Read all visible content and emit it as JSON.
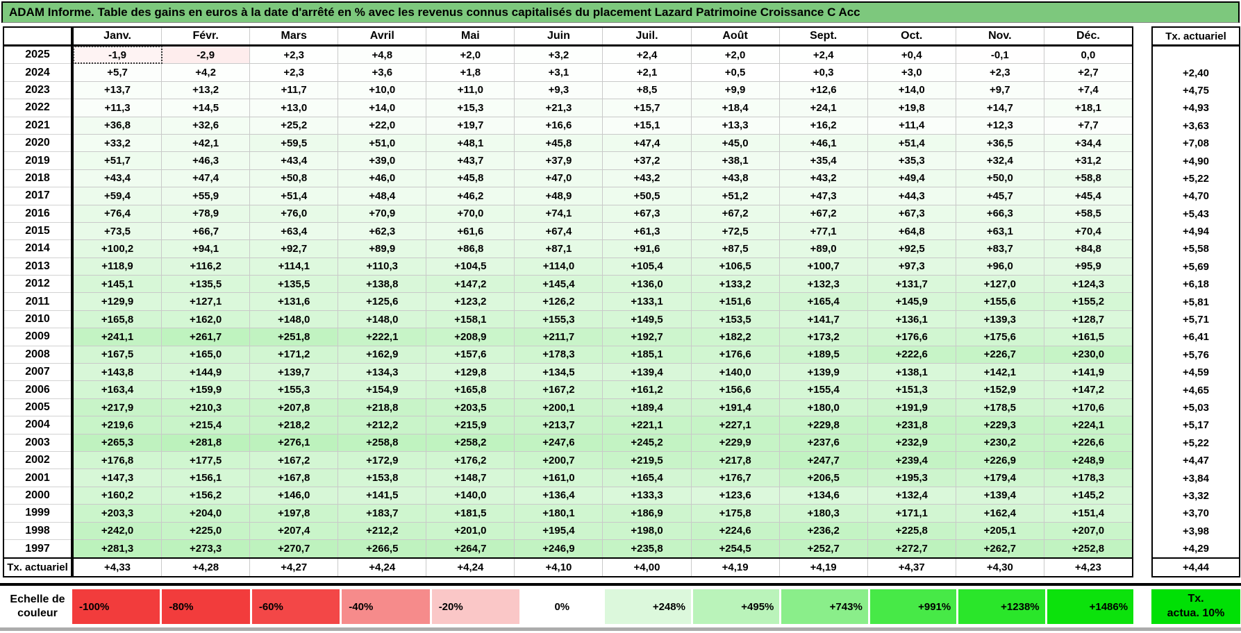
{
  "colors": {
    "title_bar_bg": "#7DC87D",
    "grid_line": "#C9C9C9",
    "border": "#000000"
  },
  "selection": {
    "row_index": 0,
    "col_index": 0,
    "year": "2025",
    "month": "Janv."
  },
  "chart_data": {
    "type": "heatmap",
    "title": "ADAM Informe. Table des gains en euros à la date d'arrêté en % avec les revenus connus capitalisés du placement Lazard Patrimoine Croissance C Acc",
    "columns": [
      "Janv.",
      "Févr.",
      "Mars",
      "Avril",
      "Mai",
      "Juin",
      "Juil.",
      "Août",
      "Sept.",
      "Oct.",
      "Nov.",
      "Déc."
    ],
    "right_column_header": "Tx. actuariel",
    "rows": [
      {
        "year": "2025",
        "values": [
          "-1,9",
          "-2,9",
          "+2,3",
          "+4,8",
          "+2,0",
          "+3,2",
          "+2,4",
          "+2,0",
          "+2,4",
          "+0,4",
          "-0,1",
          "0,0"
        ],
        "tx_actuariel": ""
      },
      {
        "year": "2024",
        "values": [
          "+5,7",
          "+4,2",
          "+2,3",
          "+3,6",
          "+1,8",
          "+3,1",
          "+2,1",
          "+0,5",
          "+0,3",
          "+3,0",
          "+2,3",
          "+2,7"
        ],
        "tx_actuariel": "+2,40"
      },
      {
        "year": "2023",
        "values": [
          "+13,7",
          "+13,2",
          "+11,7",
          "+10,0",
          "+11,0",
          "+9,3",
          "+8,5",
          "+9,9",
          "+12,6",
          "+14,0",
          "+9,7",
          "+7,4"
        ],
        "tx_actuariel": "+4,75"
      },
      {
        "year": "2022",
        "values": [
          "+11,3",
          "+14,5",
          "+13,0",
          "+14,0",
          "+15,3",
          "+21,3",
          "+15,7",
          "+18,4",
          "+24,1",
          "+19,8",
          "+14,7",
          "+18,1"
        ],
        "tx_actuariel": "+4,93"
      },
      {
        "year": "2021",
        "values": [
          "+36,8",
          "+32,6",
          "+25,2",
          "+22,0",
          "+19,7",
          "+16,6",
          "+15,1",
          "+13,3",
          "+16,2",
          "+11,4",
          "+12,3",
          "+7,7"
        ],
        "tx_actuariel": "+3,63"
      },
      {
        "year": "2020",
        "values": [
          "+33,2",
          "+42,1",
          "+59,5",
          "+51,0",
          "+48,1",
          "+45,8",
          "+47,4",
          "+45,0",
          "+46,1",
          "+51,4",
          "+36,5",
          "+34,4"
        ],
        "tx_actuariel": "+7,08"
      },
      {
        "year": "2019",
        "values": [
          "+51,7",
          "+46,3",
          "+43,4",
          "+39,0",
          "+43,7",
          "+37,9",
          "+37,2",
          "+38,1",
          "+35,4",
          "+35,3",
          "+32,4",
          "+31,2"
        ],
        "tx_actuariel": "+4,90"
      },
      {
        "year": "2018",
        "values": [
          "+43,4",
          "+47,4",
          "+50,8",
          "+46,0",
          "+45,8",
          "+47,0",
          "+43,2",
          "+43,8",
          "+43,2",
          "+49,4",
          "+50,0",
          "+58,8"
        ],
        "tx_actuariel": "+5,22"
      },
      {
        "year": "2017",
        "values": [
          "+59,4",
          "+55,9",
          "+51,4",
          "+48,4",
          "+46,2",
          "+48,9",
          "+50,5",
          "+51,2",
          "+47,3",
          "+44,3",
          "+45,7",
          "+45,4"
        ],
        "tx_actuariel": "+4,70"
      },
      {
        "year": "2016",
        "values": [
          "+76,4",
          "+78,9",
          "+76,0",
          "+70,9",
          "+70,0",
          "+74,1",
          "+67,3",
          "+67,2",
          "+67,2",
          "+67,3",
          "+66,3",
          "+58,5"
        ],
        "tx_actuariel": "+5,43"
      },
      {
        "year": "2015",
        "values": [
          "+73,5",
          "+66,7",
          "+63,4",
          "+62,3",
          "+61,6",
          "+67,4",
          "+61,3",
          "+72,5",
          "+77,1",
          "+64,8",
          "+63,1",
          "+70,4"
        ],
        "tx_actuariel": "+4,94"
      },
      {
        "year": "2014",
        "values": [
          "+100,2",
          "+94,1",
          "+92,7",
          "+89,9",
          "+86,8",
          "+87,1",
          "+91,6",
          "+87,5",
          "+89,0",
          "+92,5",
          "+83,7",
          "+84,8"
        ],
        "tx_actuariel": "+5,58"
      },
      {
        "year": "2013",
        "values": [
          "+118,9",
          "+116,2",
          "+114,1",
          "+110,3",
          "+104,5",
          "+114,0",
          "+105,4",
          "+106,5",
          "+100,7",
          "+97,3",
          "+96,0",
          "+95,9"
        ],
        "tx_actuariel": "+5,69"
      },
      {
        "year": "2012",
        "values": [
          "+145,1",
          "+135,5",
          "+135,5",
          "+138,8",
          "+147,2",
          "+145,4",
          "+136,0",
          "+133,2",
          "+132,3",
          "+131,7",
          "+127,0",
          "+124,3"
        ],
        "tx_actuariel": "+6,18"
      },
      {
        "year": "2011",
        "values": [
          "+129,9",
          "+127,1",
          "+131,6",
          "+125,6",
          "+123,2",
          "+126,2",
          "+133,1",
          "+151,6",
          "+165,4",
          "+145,9",
          "+155,6",
          "+155,2"
        ],
        "tx_actuariel": "+5,81"
      },
      {
        "year": "2010",
        "values": [
          "+165,8",
          "+162,0",
          "+148,0",
          "+148,0",
          "+158,1",
          "+155,3",
          "+149,5",
          "+153,5",
          "+141,7",
          "+136,1",
          "+139,3",
          "+128,7"
        ],
        "tx_actuariel": "+5,71"
      },
      {
        "year": "2009",
        "values": [
          "+241,1",
          "+261,7",
          "+251,8",
          "+222,1",
          "+208,9",
          "+211,7",
          "+192,7",
          "+182,2",
          "+173,2",
          "+176,6",
          "+175,6",
          "+161,5"
        ],
        "tx_actuariel": "+6,41"
      },
      {
        "year": "2008",
        "values": [
          "+167,5",
          "+165,0",
          "+171,2",
          "+162,9",
          "+157,6",
          "+178,3",
          "+185,1",
          "+176,6",
          "+189,5",
          "+222,6",
          "+226,7",
          "+230,0"
        ],
        "tx_actuariel": "+5,76"
      },
      {
        "year": "2007",
        "values": [
          "+143,8",
          "+144,9",
          "+139,7",
          "+134,3",
          "+129,8",
          "+134,5",
          "+139,4",
          "+140,0",
          "+139,9",
          "+138,1",
          "+142,1",
          "+141,9"
        ],
        "tx_actuariel": "+4,59"
      },
      {
        "year": "2006",
        "values": [
          "+163,4",
          "+159,9",
          "+155,3",
          "+154,9",
          "+165,8",
          "+167,2",
          "+161,2",
          "+156,6",
          "+155,4",
          "+151,3",
          "+152,9",
          "+147,2"
        ],
        "tx_actuariel": "+4,65"
      },
      {
        "year": "2005",
        "values": [
          "+217,9",
          "+210,3",
          "+207,8",
          "+218,8",
          "+203,5",
          "+200,1",
          "+189,4",
          "+191,4",
          "+180,0",
          "+191,9",
          "+178,5",
          "+170,6"
        ],
        "tx_actuariel": "+5,03"
      },
      {
        "year": "2004",
        "values": [
          "+219,6",
          "+215,4",
          "+218,2",
          "+212,2",
          "+215,9",
          "+213,7",
          "+221,1",
          "+227,1",
          "+229,8",
          "+231,8",
          "+229,3",
          "+224,1"
        ],
        "tx_actuariel": "+5,17"
      },
      {
        "year": "2003",
        "values": [
          "+265,3",
          "+281,8",
          "+276,1",
          "+258,8",
          "+258,2",
          "+247,6",
          "+245,2",
          "+229,9",
          "+237,6",
          "+232,9",
          "+230,2",
          "+226,6"
        ],
        "tx_actuariel": "+5,22"
      },
      {
        "year": "2002",
        "values": [
          "+176,8",
          "+177,5",
          "+167,2",
          "+172,9",
          "+176,2",
          "+200,7",
          "+219,5",
          "+217,8",
          "+247,7",
          "+239,4",
          "+226,9",
          "+248,9"
        ],
        "tx_actuariel": "+4,47"
      },
      {
        "year": "2001",
        "values": [
          "+147,3",
          "+156,1",
          "+167,8",
          "+153,8",
          "+148,7",
          "+161,0",
          "+165,4",
          "+176,7",
          "+206,5",
          "+195,3",
          "+179,4",
          "+178,3"
        ],
        "tx_actuariel": "+3,84"
      },
      {
        "year": "2000",
        "values": [
          "+160,2",
          "+156,2",
          "+146,0",
          "+141,5",
          "+140,0",
          "+136,4",
          "+133,3",
          "+123,6",
          "+134,6",
          "+132,4",
          "+139,4",
          "+145,2"
        ],
        "tx_actuariel": "+3,32"
      },
      {
        "year": "1999",
        "values": [
          "+203,3",
          "+204,0",
          "+197,8",
          "+183,7",
          "+181,5",
          "+180,1",
          "+186,9",
          "+175,8",
          "+180,3",
          "+171,1",
          "+162,4",
          "+151,4"
        ],
        "tx_actuariel": "+3,70"
      },
      {
        "year": "1998",
        "values": [
          "+242,0",
          "+225,0",
          "+207,4",
          "+212,2",
          "+201,0",
          "+195,4",
          "+198,0",
          "+224,6",
          "+236,2",
          "+225,8",
          "+205,1",
          "+207,0"
        ],
        "tx_actuariel": "+3,98"
      },
      {
        "year": "1997",
        "values": [
          "+281,3",
          "+273,3",
          "+270,7",
          "+266,5",
          "+264,7",
          "+246,9",
          "+235,8",
          "+254,5",
          "+252,7",
          "+272,7",
          "+262,7",
          "+252,8"
        ],
        "tx_actuariel": "+4,29"
      }
    ],
    "footer_row": {
      "label": "Tx. actuariel",
      "values": [
        "+4,33",
        "+4,28",
        "+4,27",
        "+4,24",
        "+4,24",
        "+4,10",
        "+4,00",
        "+4,19",
        "+4,19",
        "+4,37",
        "+4,30",
        "+4,23"
      ],
      "tx_actuariel": "+4,44"
    },
    "color_scale": {
      "label": "Echelle de couleur",
      "stops": [
        {
          "label": "-100%",
          "color": "#F23C3C"
        },
        {
          "label": "-80%",
          "color": "#F23C3C"
        },
        {
          "label": "-60%",
          "color": "#F34747"
        },
        {
          "label": "-40%",
          "color": "#F68B8B"
        },
        {
          "label": "-20%",
          "color": "#FAC7C7"
        },
        {
          "label": "0%",
          "color": "#FFFFFF"
        },
        {
          "label": "+248%",
          "color": "#DCF8DC"
        },
        {
          "label": "+495%",
          "color": "#BAF3BA"
        },
        {
          "label": "+743%",
          "color": "#8AEE8A"
        },
        {
          "label": "+991%",
          "color": "#47E947"
        },
        {
          "label": "+1238%",
          "color": "#2AE62A"
        },
        {
          "label": "+1486%",
          "color": "#0CE20C"
        }
      ],
      "right_box": {
        "line1": "Tx.",
        "line2": "actua. 10%",
        "color": "#00E005"
      }
    }
  }
}
